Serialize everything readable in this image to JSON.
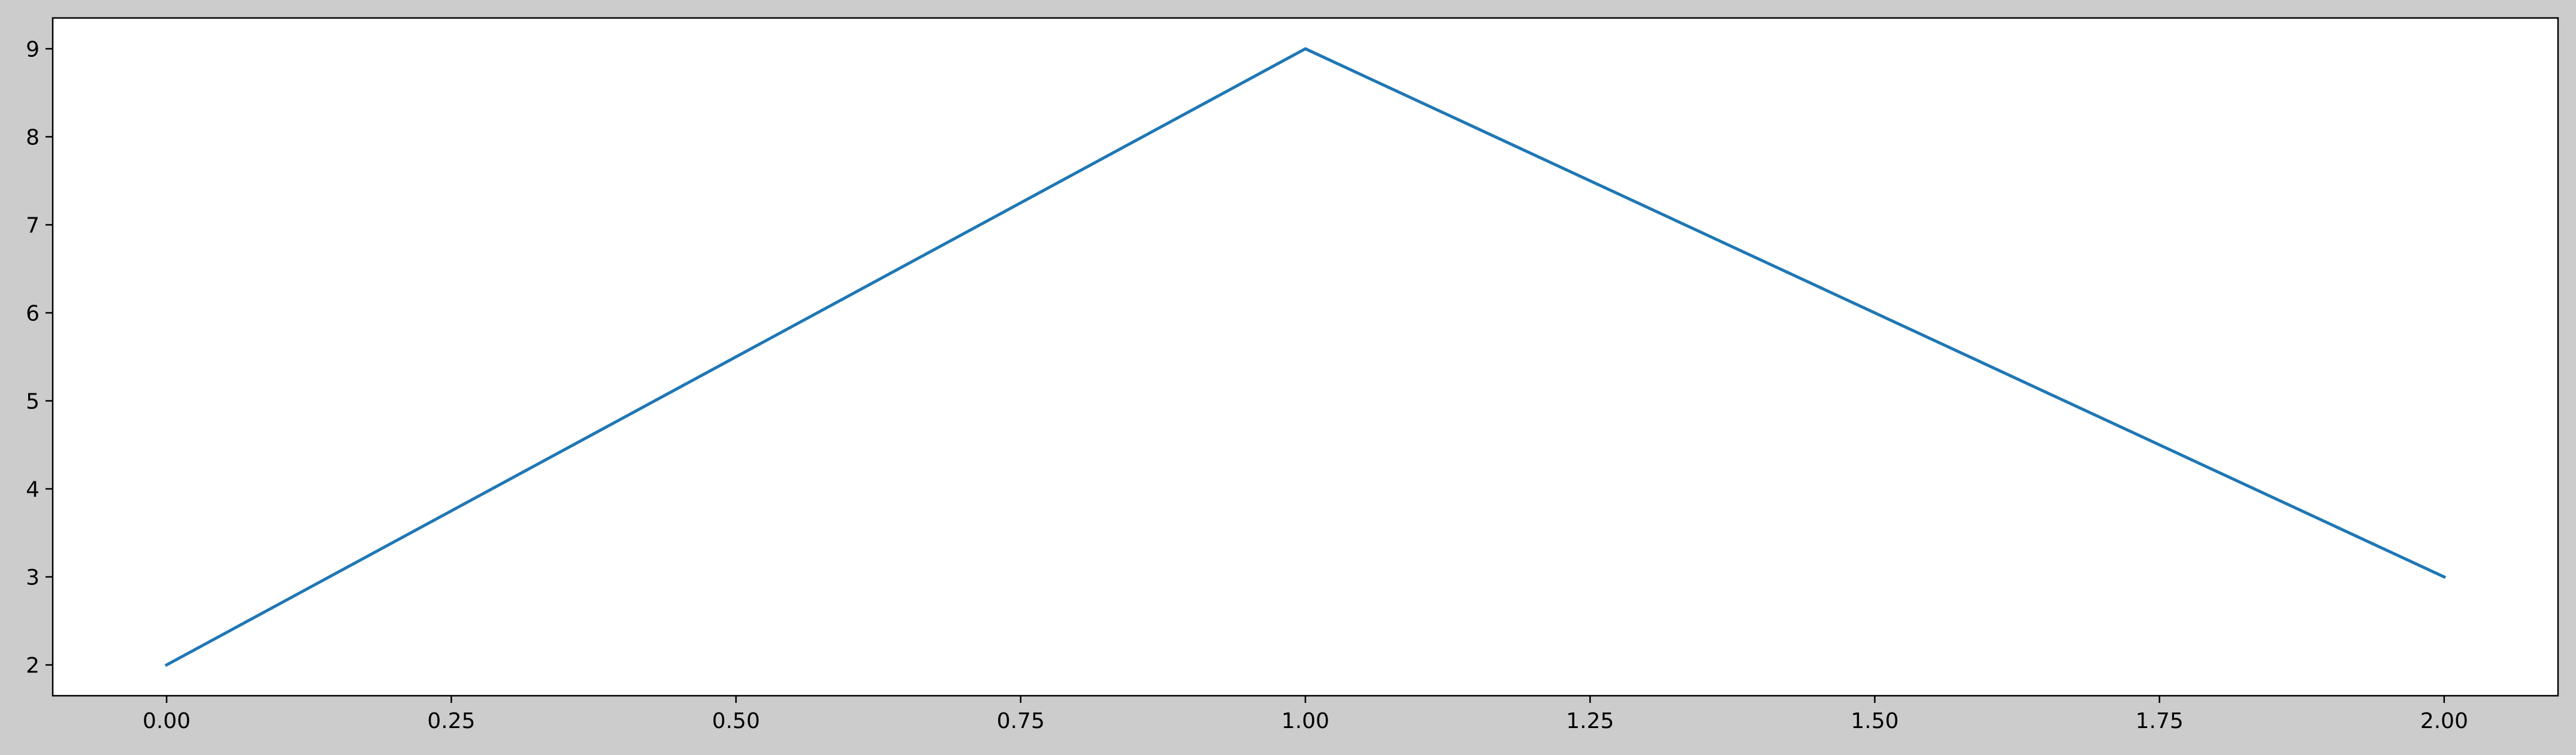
{
  "chart_data": {
    "type": "line",
    "title": "",
    "xlabel": "",
    "ylabel": "",
    "x": [
      0,
      1,
      2
    ],
    "series": [
      {
        "values": [
          2,
          9,
          3
        ],
        "color": "#1f77b4"
      }
    ],
    "xlim": [
      -0.1,
      2.1
    ],
    "ylim": [
      1.65,
      9.35
    ],
    "xticks": [
      0,
      0.25,
      0.5,
      0.75,
      1,
      1.25,
      1.5,
      1.75,
      2
    ],
    "xtick_labels": [
      "0.00",
      "0.25",
      "0.50",
      "0.75",
      "1.00",
      "1.25",
      "1.50",
      "1.75",
      "2.00"
    ],
    "yticks": [
      2,
      3,
      4,
      5,
      6,
      7,
      8,
      9
    ],
    "ytick_labels": [
      "2",
      "3",
      "4",
      "5",
      "6",
      "7",
      "8",
      "9"
    ],
    "grid": false,
    "legend": "none"
  },
  "style": {
    "figure_background": "#cccccc",
    "axes_background": "#ffffff",
    "axis_color": "#000000"
  }
}
